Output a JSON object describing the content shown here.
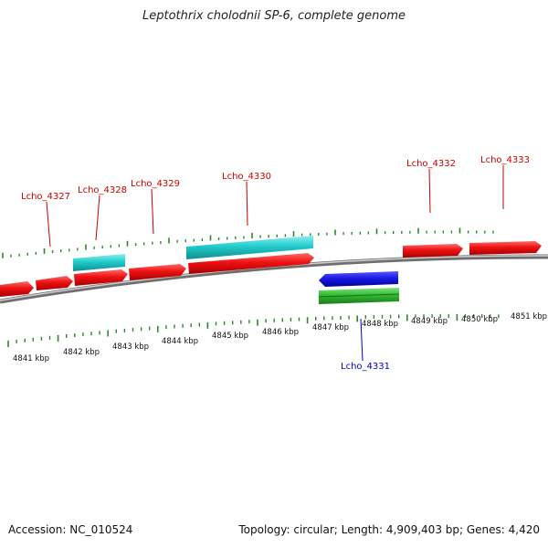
{
  "title": "Leptothrix cholodnii SP-6, complete genome",
  "footer": {
    "accession": "Accession: NC_010524",
    "summary": "Topology: circular; Length: 4,909,403 bp; Genes: 4,420"
  },
  "colors": {
    "forward_gene": "#ee1111",
    "forward_gene_label": "#cc0000",
    "reverse_gene": "#1a1ae6",
    "reverse_gene_label": "#0000cc",
    "rna_feature": "#22cccc",
    "green_feature": "#33bb33",
    "backbone": "#888888",
    "tick": "#2a8a2a"
  },
  "kbp_labels": [
    "4841 kbp",
    "4842 kbp",
    "4843 kbp",
    "4844 kbp",
    "4845 kbp",
    "4846 kbp",
    "4847 kbp",
    "4848 kbp",
    "4849 kbp",
    "4850 kbp",
    "4851 kbp"
  ],
  "gene_labels": [
    "Lcho_4327",
    "Lcho_4328",
    "Lcho_4329",
    "Lcho_4330",
    "Lcho_4331",
    "Lcho_4332",
    "Lcho_4333"
  ]
}
